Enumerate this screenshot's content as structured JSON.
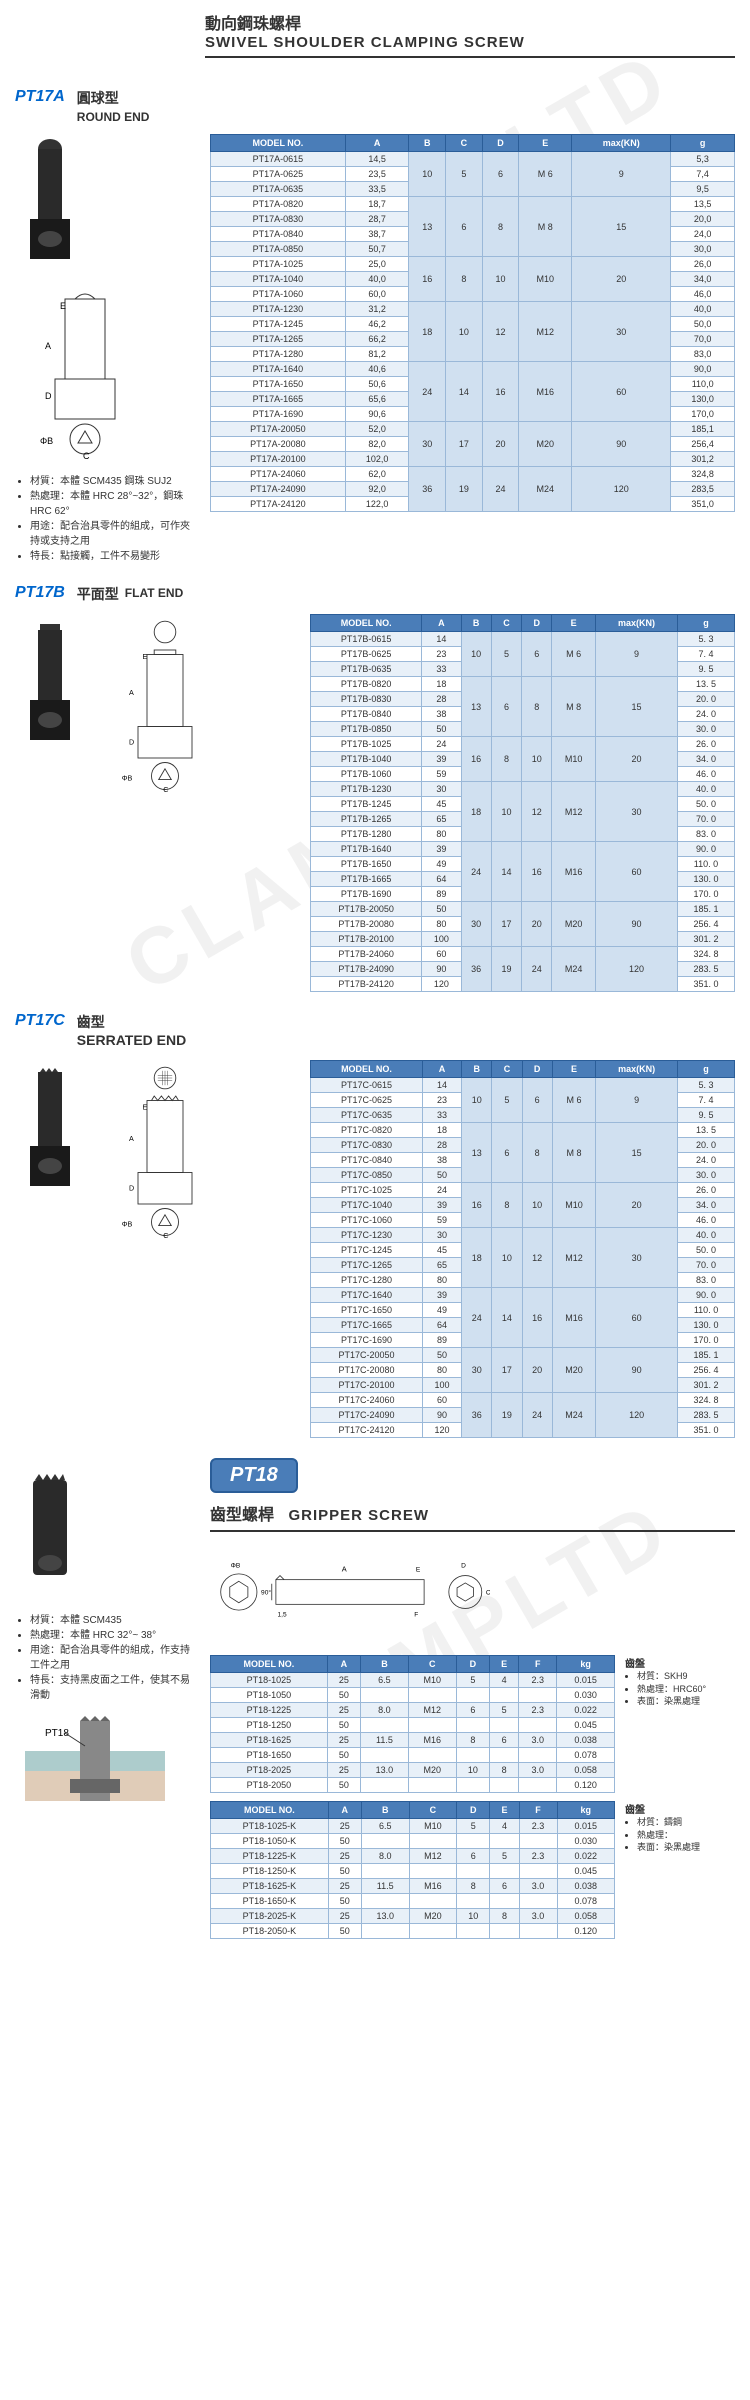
{
  "watermarks": [
    "CLAMPLTD",
    "CLAMPLTD",
    "CLAMPLTD"
  ],
  "mainHeader": {
    "cn": "動向鋼珠螺桿",
    "en": "SWIVEL SHOULDER CLAMPING SCREW"
  },
  "pt17a": {
    "code": "PT17A",
    "subtitle_cn": "圓球型",
    "subtitle_en": "ROUND END",
    "notes": [
      "材質：本體 SCM435 鋼珠 SUJ2",
      "熱處理：本體  HRC 28°~32°，鋼珠  HRC 62°",
      "用途：配合治具零件的組成，可作夾持或支持之用",
      "特長：點接觸，工件不易變形"
    ],
    "headers": [
      "MODEL NO.",
      "A",
      "B",
      "C",
      "D",
      "E",
      "max(KN)",
      "g"
    ],
    "groups": [
      {
        "span": 3,
        "B": "10",
        "C": "5",
        "D": "6",
        "E": "M 6",
        "max": "9",
        "rows": [
          [
            "PT17A-0615",
            "14,5",
            "5,3"
          ],
          [
            "PT17A-0625",
            "23,5",
            "7,4"
          ],
          [
            "PT17A-0635",
            "33,5",
            "9,5"
          ]
        ]
      },
      {
        "span": 4,
        "B": "13",
        "C": "6",
        "D": "8",
        "E": "M 8",
        "max": "15",
        "rows": [
          [
            "PT17A-0820",
            "18,7",
            "13,5"
          ],
          [
            "PT17A-0830",
            "28,7",
            "20,0"
          ],
          [
            "PT17A-0840",
            "38,7",
            "24,0"
          ],
          [
            "PT17A-0850",
            "50,7",
            "30,0"
          ]
        ]
      },
      {
        "span": 3,
        "B": "16",
        "C": "8",
        "D": "10",
        "E": "M10",
        "max": "20",
        "rows": [
          [
            "PT17A-1025",
            "25,0",
            "26,0"
          ],
          [
            "PT17A-1040",
            "40,0",
            "34,0"
          ],
          [
            "PT17A-1060",
            "60,0",
            "46,0"
          ]
        ]
      },
      {
        "span": 4,
        "B": "18",
        "C": "10",
        "D": "12",
        "E": "M12",
        "max": "30",
        "rows": [
          [
            "PT17A-1230",
            "31,2",
            "40,0"
          ],
          [
            "PT17A-1245",
            "46,2",
            "50,0"
          ],
          [
            "PT17A-1265",
            "66,2",
            "70,0"
          ],
          [
            "PT17A-1280",
            "81,2",
            "83,0"
          ]
        ]
      },
      {
        "span": 4,
        "B": "24",
        "C": "14",
        "D": "16",
        "E": "M16",
        "max": "60",
        "rows": [
          [
            "PT17A-1640",
            "40,6",
            "90,0"
          ],
          [
            "PT17A-1650",
            "50,6",
            "110,0"
          ],
          [
            "PT17A-1665",
            "65,6",
            "130,0"
          ],
          [
            "PT17A-1690",
            "90,6",
            "170,0"
          ]
        ]
      },
      {
        "span": 3,
        "B": "30",
        "C": "17",
        "D": "20",
        "E": "M20",
        "max": "90",
        "rows": [
          [
            "PT17A-20050",
            "52,0",
            "185,1"
          ],
          [
            "PT17A-20080",
            "82,0",
            "256,4"
          ],
          [
            "PT17A-20100",
            "102,0",
            "301,2"
          ]
        ]
      },
      {
        "span": 3,
        "B": "36",
        "C": "19",
        "D": "24",
        "E": "M24",
        "max": "120",
        "rows": [
          [
            "PT17A-24060",
            "62,0",
            "324,8"
          ],
          [
            "PT17A-24090",
            "92,0",
            "283,5"
          ],
          [
            "PT17A-24120",
            "122,0",
            "351,0"
          ]
        ]
      }
    ]
  },
  "pt17b": {
    "code": "PT17B",
    "subtitle_cn": "平面型",
    "subtitle_en": "FLAT END",
    "headers": [
      "MODEL NO.",
      "A",
      "B",
      "C",
      "D",
      "E",
      "max(KN)",
      "g"
    ],
    "groups": [
      {
        "span": 3,
        "B": "10",
        "C": "5",
        "D": "6",
        "E": "M 6",
        "max": "9",
        "rows": [
          [
            "PT17B-0615",
            "14",
            "5. 3"
          ],
          [
            "PT17B-0625",
            "23",
            "7. 4"
          ],
          [
            "PT17B-0635",
            "33",
            "9. 5"
          ]
        ]
      },
      {
        "span": 4,
        "B": "13",
        "C": "6",
        "D": "8",
        "E": "M 8",
        "max": "15",
        "rows": [
          [
            "PT17B-0820",
            "18",
            "13. 5"
          ],
          [
            "PT17B-0830",
            "28",
            "20. 0"
          ],
          [
            "PT17B-0840",
            "38",
            "24. 0"
          ],
          [
            "PT17B-0850",
            "50",
            "30. 0"
          ]
        ]
      },
      {
        "span": 3,
        "B": "16",
        "C": "8",
        "D": "10",
        "E": "M10",
        "max": "20",
        "rows": [
          [
            "PT17B-1025",
            "24",
            "26. 0"
          ],
          [
            "PT17B-1040",
            "39",
            "34. 0"
          ],
          [
            "PT17B-1060",
            "59",
            "46. 0"
          ]
        ]
      },
      {
        "span": 4,
        "B": "18",
        "C": "10",
        "D": "12",
        "E": "M12",
        "max": "30",
        "rows": [
          [
            "PT17B-1230",
            "30",
            "40. 0"
          ],
          [
            "PT17B-1245",
            "45",
            "50. 0"
          ],
          [
            "PT17B-1265",
            "65",
            "70. 0"
          ],
          [
            "PT17B-1280",
            "80",
            "83. 0"
          ]
        ]
      },
      {
        "span": 4,
        "B": "24",
        "C": "14",
        "D": "16",
        "E": "M16",
        "max": "60",
        "rows": [
          [
            "PT17B-1640",
            "39",
            "90. 0"
          ],
          [
            "PT17B-1650",
            "49",
            "110. 0"
          ],
          [
            "PT17B-1665",
            "64",
            "130. 0"
          ],
          [
            "PT17B-1690",
            "89",
            "170. 0"
          ]
        ]
      },
      {
        "span": 3,
        "B": "30",
        "C": "17",
        "D": "20",
        "E": "M20",
        "max": "90",
        "rows": [
          [
            "PT17B-20050",
            "50",
            "185. 1"
          ],
          [
            "PT17B-20080",
            "80",
            "256. 4"
          ],
          [
            "PT17B-20100",
            "100",
            "301. 2"
          ]
        ]
      },
      {
        "span": 3,
        "B": "36",
        "C": "19",
        "D": "24",
        "E": "M24",
        "max": "120",
        "rows": [
          [
            "PT17B-24060",
            "60",
            "324. 8"
          ],
          [
            "PT17B-24090",
            "90",
            "283. 5"
          ],
          [
            "PT17B-24120",
            "120",
            "351. 0"
          ]
        ]
      }
    ]
  },
  "pt17c": {
    "code": "PT17C",
    "subtitle_cn": "齒型",
    "subtitle_en": "SERRATED END",
    "headers": [
      "MODEL NO.",
      "A",
      "B",
      "C",
      "D",
      "E",
      "max(KN)",
      "g"
    ],
    "groups": [
      {
        "span": 3,
        "B": "10",
        "C": "5",
        "D": "6",
        "E": "M 6",
        "max": "9",
        "rows": [
          [
            "PT17C-0615",
            "14",
            "5. 3"
          ],
          [
            "PT17C-0625",
            "23",
            "7. 4"
          ],
          [
            "PT17C-0635",
            "33",
            "9. 5"
          ]
        ]
      },
      {
        "span": 4,
        "B": "13",
        "C": "6",
        "D": "8",
        "E": "M 8",
        "max": "15",
        "rows": [
          [
            "PT17C-0820",
            "18",
            "13. 5"
          ],
          [
            "PT17C-0830",
            "28",
            "20. 0"
          ],
          [
            "PT17C-0840",
            "38",
            "24. 0"
          ],
          [
            "PT17C-0850",
            "50",
            "30. 0"
          ]
        ]
      },
      {
        "span": 3,
        "B": "16",
        "C": "8",
        "D": "10",
        "E": "M10",
        "max": "20",
        "rows": [
          [
            "PT17C-1025",
            "24",
            "26. 0"
          ],
          [
            "PT17C-1040",
            "39",
            "34. 0"
          ],
          [
            "PT17C-1060",
            "59",
            "46. 0"
          ]
        ]
      },
      {
        "span": 4,
        "B": "18",
        "C": "10",
        "D": "12",
        "E": "M12",
        "max": "30",
        "rows": [
          [
            "PT17C-1230",
            "30",
            "40. 0"
          ],
          [
            "PT17C-1245",
            "45",
            "50. 0"
          ],
          [
            "PT17C-1265",
            "65",
            "70. 0"
          ],
          [
            "PT17C-1280",
            "80",
            "83. 0"
          ]
        ]
      },
      {
        "span": 4,
        "B": "24",
        "C": "14",
        "D": "16",
        "E": "M16",
        "max": "60",
        "rows": [
          [
            "PT17C-1640",
            "39",
            "90. 0"
          ],
          [
            "PT17C-1650",
            "49",
            "110. 0"
          ],
          [
            "PT17C-1665",
            "64",
            "130. 0"
          ],
          [
            "PT17C-1690",
            "89",
            "170. 0"
          ]
        ]
      },
      {
        "span": 3,
        "B": "30",
        "C": "17",
        "D": "20",
        "E": "M20",
        "max": "90",
        "rows": [
          [
            "PT17C-20050",
            "50",
            "185. 1"
          ],
          [
            "PT17C-20080",
            "80",
            "256. 4"
          ],
          [
            "PT17C-20100",
            "100",
            "301. 2"
          ]
        ]
      },
      {
        "span": 3,
        "B": "36",
        "C": "19",
        "D": "24",
        "E": "M24",
        "max": "120",
        "rows": [
          [
            "PT17C-24060",
            "60",
            "324. 8"
          ],
          [
            "PT17C-24090",
            "90",
            "283. 5"
          ],
          [
            "PT17C-24120",
            "120",
            "351. 0"
          ]
        ]
      }
    ]
  },
  "pt18": {
    "code": "PT18",
    "title_cn": "齒型螺桿",
    "title_en": "GRIPPER SCREW",
    "notes_left": [
      "材質：本體 SCM435",
      "熱處理：本體  HRC 32°~ 38°",
      "用途：配合治具零件的組成，作支持工件之用",
      "特長：支持黑皮面之工件，使其不易滑動"
    ],
    "side_notes_title": "齒盤",
    "side_notes1": [
      "材質：SKH9",
      "熱處理：HRC60°",
      "表面：染黑處理"
    ],
    "side_notes2": [
      "材質：鑄鋼",
      "熱處理：",
      "表面：染黑處理"
    ],
    "table1_headers": [
      "MODEL NO.",
      "A",
      "B",
      "C",
      "D",
      "E",
      "F",
      "kg"
    ],
    "table1_rows": [
      [
        "PT18-1025",
        "25",
        "6.5",
        "M10",
        "5",
        "4",
        "2.3",
        "0.015"
      ],
      [
        "PT18-1050",
        "50",
        "",
        "",
        "",
        "",
        "",
        "0.030"
      ],
      [
        "PT18-1225",
        "25",
        "8.0",
        "M12",
        "6",
        "5",
        "2.3",
        "0.022"
      ],
      [
        "PT18-1250",
        "50",
        "",
        "",
        "",
        "",
        "",
        "0.045"
      ],
      [
        "PT18-1625",
        "25",
        "11.5",
        "M16",
        "8",
        "6",
        "3.0",
        "0.038"
      ],
      [
        "PT18-1650",
        "50",
        "",
        "",
        "",
        "",
        "",
        "0.078"
      ],
      [
        "PT18-2025",
        "25",
        "13.0",
        "M20",
        "10",
        "8",
        "3.0",
        "0.058"
      ],
      [
        "PT18-2050",
        "50",
        "",
        "",
        "",
        "",
        "",
        "0.120"
      ]
    ],
    "table2_headers": [
      "MODEL NO.",
      "A",
      "B",
      "C",
      "D",
      "E",
      "F",
      "kg"
    ],
    "table2_rows": [
      [
        "PT18-1025-K",
        "25",
        "6.5",
        "M10",
        "5",
        "4",
        "2.3",
        "0.015"
      ],
      [
        "PT18-1050-K",
        "50",
        "",
        "",
        "",
        "",
        "",
        "0.030"
      ],
      [
        "PT18-1225-K",
        "25",
        "8.0",
        "M12",
        "6",
        "5",
        "2.3",
        "0.022"
      ],
      [
        "PT18-1250-K",
        "50",
        "",
        "",
        "",
        "",
        "",
        "0.045"
      ],
      [
        "PT18-1625-K",
        "25",
        "11.5",
        "M16",
        "8",
        "6",
        "3.0",
        "0.038"
      ],
      [
        "PT18-1650-K",
        "50",
        "",
        "",
        "",
        "",
        "",
        "0.078"
      ],
      [
        "PT18-2025-K",
        "25",
        "13.0",
        "M20",
        "10",
        "8",
        "3.0",
        "0.058"
      ],
      [
        "PT18-2050-K",
        "50",
        "",
        "",
        "",
        "",
        "",
        "0.120"
      ]
    ],
    "diagram_label": "PT18"
  },
  "colors": {
    "header_bg": "#4a7db8",
    "header_border": "#2a5d98",
    "cell_border": "#9ab8d8",
    "row_alt": "#e8f0f8",
    "group_bg": "#d0e0f0",
    "code_color": "#0066cc"
  }
}
